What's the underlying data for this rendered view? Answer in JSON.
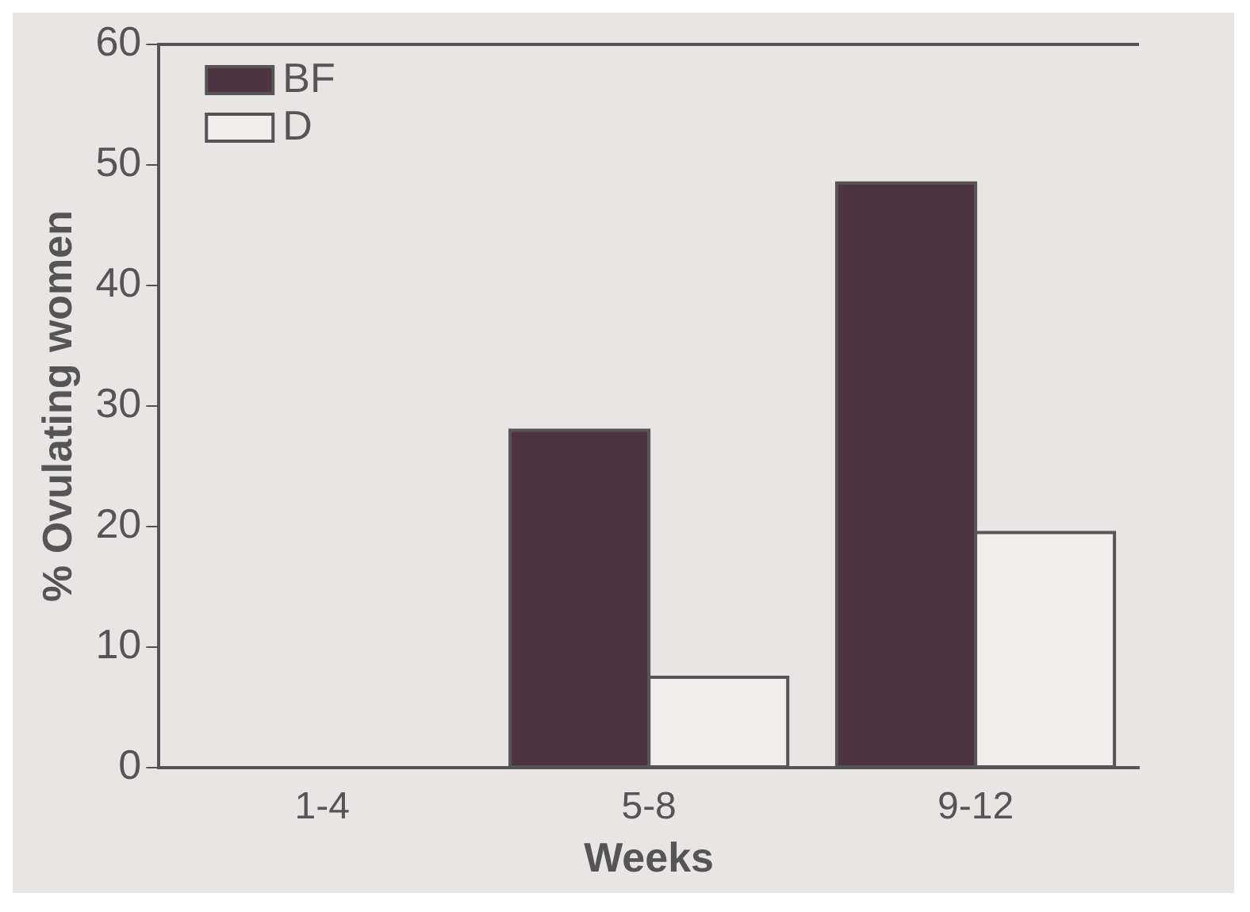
{
  "chart_data": {
    "type": "bar",
    "xlabel": "Weeks",
    "ylabel": "% Ovulating women",
    "categories": [
      "1-4",
      "5-8",
      "9-12"
    ],
    "series": [
      {
        "name": "BF",
        "color": "#4e3340",
        "values": [
          0,
          28,
          48.5
        ]
      },
      {
        "name": "D",
        "color": "#f2eeee",
        "values": [
          0,
          7.5,
          19.5
        ]
      }
    ],
    "ylim": [
      0,
      60
    ],
    "yticks": [
      0,
      10,
      20,
      30,
      40,
      50,
      60
    ],
    "grid": false,
    "legend": "top left"
  }
}
